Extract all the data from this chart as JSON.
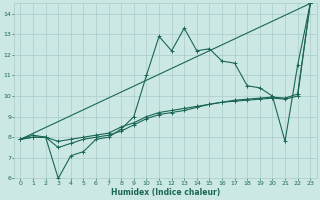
{
  "title": "",
  "xlabel": "Humidex (Indice chaleur)",
  "bg_color": "#cce8e4",
  "grid_color": "#aacccc",
  "line_color": "#1a6655",
  "xlim": [
    -0.5,
    23.5
  ],
  "ylim": [
    6,
    14.5
  ],
  "xticks": [
    0,
    1,
    2,
    3,
    4,
    5,
    6,
    7,
    8,
    9,
    10,
    11,
    12,
    13,
    14,
    15,
    16,
    17,
    18,
    19,
    20,
    21,
    22,
    23
  ],
  "yticks": [
    6,
    7,
    8,
    9,
    10,
    11,
    12,
    13,
    14
  ],
  "line1_x": [
    0,
    1,
    2,
    3,
    4,
    5,
    6,
    7,
    8,
    9,
    10,
    11,
    12,
    13,
    14,
    15,
    16,
    17,
    18,
    19,
    20,
    21,
    22,
    23
  ],
  "line1_y": [
    7.9,
    8.1,
    8.0,
    6.0,
    7.1,
    7.3,
    7.9,
    8.0,
    8.4,
    9.0,
    11.0,
    12.9,
    12.2,
    13.3,
    12.2,
    12.3,
    11.7,
    11.6,
    10.5,
    10.4,
    10.0,
    7.8,
    11.5,
    14.5
  ],
  "line2_x": [
    0,
    23
  ],
  "line2_y": [
    7.9,
    14.5
  ],
  "line3_x": [
    0,
    1,
    2,
    3,
    4,
    5,
    6,
    7,
    8,
    9,
    10,
    11,
    12,
    13,
    14,
    15,
    16,
    17,
    18,
    19,
    20,
    21,
    22,
    23
  ],
  "line3_y": [
    7.9,
    8.0,
    8.0,
    7.8,
    7.9,
    8.0,
    8.1,
    8.2,
    8.5,
    8.7,
    9.0,
    9.2,
    9.3,
    9.4,
    9.5,
    9.6,
    9.7,
    9.8,
    9.85,
    9.9,
    9.95,
    9.9,
    10.1,
    14.5
  ],
  "line4_x": [
    0,
    1,
    2,
    3,
    4,
    5,
    6,
    7,
    8,
    9,
    10,
    11,
    12,
    13,
    14,
    15,
    16,
    17,
    18,
    19,
    20,
    21,
    22,
    23
  ],
  "line4_y": [
    7.9,
    8.0,
    8.0,
    7.5,
    7.7,
    7.9,
    8.0,
    8.1,
    8.3,
    8.6,
    8.9,
    9.1,
    9.2,
    9.3,
    9.45,
    9.6,
    9.7,
    9.75,
    9.8,
    9.85,
    9.9,
    9.85,
    10.0,
    14.5
  ]
}
